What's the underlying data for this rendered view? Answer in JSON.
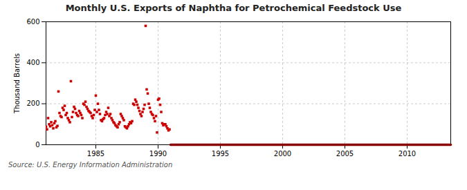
{
  "chart_data": {
    "type": "scatter",
    "title": "Monthly U.S. Exports of Naphtha for Petrochemical Feedstock Use",
    "ylabel": "Thousand Barrels",
    "annotations": [
      "Source: U.S. Energy Information Administration"
    ],
    "xlim": [
      1981.0,
      2013.5
    ],
    "xticks": [
      1985,
      1990,
      1995,
      2000,
      2005,
      2010
    ],
    "ylim": [
      0,
      600
    ],
    "yticks": [
      0,
      200,
      400,
      600
    ],
    "grid": true,
    "series": [
      {
        "type": "scatter",
        "color": "#cc0000",
        "marker": "square",
        "x": [
          1981.0,
          1981.083,
          1981.167,
          1981.25,
          1981.333,
          1981.417,
          1981.5,
          1981.583,
          1981.667,
          1981.75,
          1981.833,
          1981.917,
          1982.0,
          1982.083,
          1982.167,
          1982.25,
          1982.333,
          1982.417,
          1982.5,
          1982.583,
          1982.667,
          1982.75,
          1982.833,
          1982.917,
          1983.0,
          1983.083,
          1983.167,
          1983.25,
          1983.333,
          1983.417,
          1983.5,
          1983.583,
          1983.667,
          1983.75,
          1983.833,
          1983.917,
          1984.0,
          1984.083,
          1984.167,
          1984.25,
          1984.333,
          1984.417,
          1984.5,
          1984.583,
          1984.667,
          1984.75,
          1984.833,
          1984.917,
          1985.0,
          1985.083,
          1985.167,
          1985.25,
          1985.333,
          1985.417,
          1985.5,
          1985.583,
          1985.667,
          1985.75,
          1985.833,
          1985.917,
          1986.0,
          1986.083,
          1986.167,
          1986.25,
          1986.333,
          1986.417,
          1986.5,
          1986.583,
          1986.667,
          1986.75,
          1986.833,
          1986.917,
          1987.0,
          1987.083,
          1987.167,
          1987.25,
          1987.333,
          1987.417,
          1987.5,
          1987.583,
          1987.667,
          1987.75,
          1987.833,
          1987.917,
          1988.0,
          1988.083,
          1988.167,
          1988.25,
          1988.333,
          1988.417,
          1988.5,
          1988.583,
          1988.667,
          1988.75,
          1988.833,
          1988.917,
          1989.0,
          1989.083,
          1989.167,
          1989.25,
          1989.333,
          1989.417,
          1989.5,
          1989.583,
          1989.667,
          1989.75,
          1989.833,
          1989.917,
          1990.0,
          1990.083,
          1990.167,
          1990.25,
          1990.333,
          1990.417,
          1990.5,
          1990.583,
          1990.667,
          1990.75,
          1990.833,
          1990.917
        ],
        "values": [
          88,
          75,
          130,
          100,
          90,
          110,
          95,
          80,
          105,
          115,
          85,
          92,
          260,
          155,
          140,
          135,
          180,
          170,
          190,
          145,
          155,
          130,
          120,
          110,
          310,
          135,
          160,
          185,
          175,
          155,
          145,
          140,
          165,
          155,
          145,
          130,
          200,
          195,
          210,
          185,
          175,
          165,
          160,
          155,
          140,
          130,
          145,
          170,
          240,
          160,
          200,
          170,
          150,
          120,
          115,
          125,
          130,
          145,
          160,
          150,
          180,
          140,
          150,
          130,
          120,
          110,
          105,
          95,
          90,
          85,
          100,
          110,
          150,
          140,
          130,
          120,
          90,
          85,
          80,
          90,
          100,
          110,
          105,
          115,
          200,
          195,
          220,
          210,
          195,
          180,
          165,
          150,
          140,
          160,
          175,
          195,
          580,
          270,
          250,
          200,
          180,
          160,
          150,
          145,
          130,
          115,
          140,
          60,
          220,
          225,
          195,
          160,
          105,
          95,
          100,
          100,
          90,
          80,
          70,
          75
        ]
      },
      {
        "type": "line",
        "color": "#8b0000",
        "line_style": "solid",
        "x": [
          1991.0,
          2013.5
        ],
        "values": [
          0,
          0
        ]
      }
    ]
  }
}
